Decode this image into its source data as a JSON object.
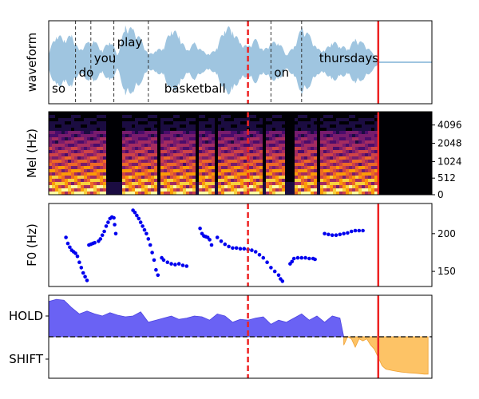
{
  "colors": {
    "waveform": "#9fc5e0",
    "word_boundary": "#333333",
    "current_marker": "#ee2222",
    "end_marker": "#ee2222",
    "f0_points": "#0000ee",
    "hold_fill": "#6a62f4",
    "shift_fill": "#fdc366"
  },
  "chart_data": [
    {
      "type": "area",
      "panel": "waveform",
      "ylabel": "waveform",
      "time_range": [
        0,
        10
      ],
      "words": [
        {
          "text": "so",
          "start": 0.0,
          "end": 0.7,
          "row": "bottom"
        },
        {
          "text": "do",
          "start": 0.7,
          "end": 1.1,
          "row": "middle"
        },
        {
          "text": "you",
          "start": 1.1,
          "end": 1.7,
          "row": "upper"
        },
        {
          "text": "play",
          "start": 1.7,
          "end": 2.6,
          "row": "top"
        },
        {
          "text": "basketball",
          "start": 2.6,
          "end": 5.8,
          "row": "bottom"
        },
        {
          "text": "on",
          "start": 5.8,
          "end": 6.6,
          "row": "middle"
        },
        {
          "text": "thursdays",
          "start": 6.6,
          "end": 8.6,
          "row": "upper"
        }
      ],
      "word_boundaries": [
        0.7,
        1.1,
        1.7,
        2.6,
        5.8,
        6.6
      ],
      "current_time": 5.2,
      "end_time": 8.6,
      "envelope": {
        "times": [
          0.0,
          0.2,
          0.4,
          0.6,
          0.8,
          1.0,
          1.2,
          1.4,
          1.6,
          1.8,
          2.0,
          2.2,
          2.4,
          2.6,
          2.8,
          3.0,
          3.2,
          3.4,
          3.6,
          3.8,
          4.0,
          4.2,
          4.4,
          4.6,
          4.8,
          5.0,
          5.2,
          5.4,
          5.6,
          5.8,
          6.0,
          6.2,
          6.4,
          6.6,
          6.8,
          7.0,
          7.2,
          7.4,
          7.6,
          7.8,
          8.0,
          8.2,
          8.4,
          8.6,
          8.8,
          9.0,
          9.5,
          10.0
        ],
        "amplitudes": [
          0.25,
          0.75,
          0.6,
          0.7,
          0.3,
          0.5,
          0.55,
          0.3,
          0.6,
          0.2,
          0.95,
          0.85,
          0.6,
          0.2,
          0.3,
          0.4,
          0.9,
          0.7,
          0.3,
          0.5,
          0.3,
          0.2,
          0.4,
          0.95,
          0.85,
          0.5,
          0.4,
          0.6,
          0.3,
          0.5,
          0.55,
          0.2,
          0.4,
          0.9,
          0.7,
          0.35,
          0.3,
          0.55,
          0.45,
          0.35,
          0.6,
          0.5,
          0.3,
          0.05,
          0.02,
          0.02,
          0.02,
          0.02
        ]
      }
    },
    {
      "type": "heatmap",
      "panel": "mel-spectrogram",
      "ylabel": "Mel (Hz)",
      "y_ticks": [
        0,
        512,
        1024,
        2048,
        4096
      ],
      "time_range": [
        0,
        10
      ],
      "voiced_segments": [
        [
          0.0,
          0.8
        ],
        [
          0.85,
          1.5
        ],
        [
          1.9,
          2.8
        ],
        [
          2.95,
          3.8
        ],
        [
          3.9,
          4.3
        ],
        [
          4.4,
          5.6
        ],
        [
          5.7,
          6.2
        ],
        [
          6.4,
          7.0
        ],
        [
          7.1,
          7.9
        ],
        [
          7.95,
          8.6
        ]
      ],
      "current_time": 5.2,
      "end_time": 8.6
    },
    {
      "type": "scatter",
      "panel": "f0",
      "ylabel": "F0 (Hz)",
      "y_ticks": [
        150,
        200
      ],
      "ylim": [
        130,
        240
      ],
      "time_range": [
        0,
        10
      ],
      "points": [
        [
          0.45,
          195
        ],
        [
          0.5,
          187
        ],
        [
          0.55,
          182
        ],
        [
          0.6,
          178
        ],
        [
          0.65,
          176
        ],
        [
          0.7,
          174
        ],
        [
          0.75,
          170
        ],
        [
          0.8,
          162
        ],
        [
          0.85,
          155
        ],
        [
          0.9,
          148
        ],
        [
          0.95,
          143
        ],
        [
          1.0,
          138
        ],
        [
          1.05,
          185
        ],
        [
          1.1,
          186
        ],
        [
          1.15,
          187
        ],
        [
          1.2,
          188
        ],
        [
          1.3,
          190
        ],
        [
          1.35,
          193
        ],
        [
          1.4,
          198
        ],
        [
          1.45,
          203
        ],
        [
          1.5,
          210
        ],
        [
          1.55,
          215
        ],
        [
          1.6,
          220
        ],
        [
          1.65,
          222
        ],
        [
          1.7,
          221
        ],
        [
          1.72,
          212
        ],
        [
          1.75,
          200
        ],
        [
          2.2,
          231
        ],
        [
          2.25,
          228
        ],
        [
          2.3,
          224
        ],
        [
          2.35,
          220
        ],
        [
          2.4,
          215
        ],
        [
          2.45,
          210
        ],
        [
          2.5,
          205
        ],
        [
          2.55,
          200
        ],
        [
          2.6,
          193
        ],
        [
          2.65,
          185
        ],
        [
          2.7,
          175
        ],
        [
          2.75,
          165
        ],
        [
          2.8,
          152
        ],
        [
          2.85,
          145
        ],
        [
          2.95,
          168
        ],
        [
          3.0,
          165
        ],
        [
          3.1,
          162
        ],
        [
          3.2,
          160
        ],
        [
          3.3,
          159
        ],
        [
          3.4,
          160
        ],
        [
          3.5,
          158
        ],
        [
          3.6,
          157
        ],
        [
          3.95,
          207
        ],
        [
          4.0,
          200
        ],
        [
          4.05,
          197
        ],
        [
          4.1,
          196
        ],
        [
          4.15,
          195
        ],
        [
          4.2,
          192
        ],
        [
          4.25,
          185
        ],
        [
          4.4,
          195
        ],
        [
          4.5,
          190
        ],
        [
          4.6,
          186
        ],
        [
          4.7,
          183
        ],
        [
          4.8,
          181
        ],
        [
          4.9,
          181
        ],
        [
          5.0,
          180
        ],
        [
          5.1,
          180
        ],
        [
          5.2,
          179
        ],
        [
          5.3,
          178
        ],
        [
          5.4,
          176
        ],
        [
          5.5,
          172
        ],
        [
          5.6,
          168
        ],
        [
          5.7,
          162
        ],
        [
          5.8,
          155
        ],
        [
          5.9,
          150
        ],
        [
          6.0,
          145
        ],
        [
          6.05,
          140
        ],
        [
          6.1,
          137
        ],
        [
          6.3,
          160
        ],
        [
          6.35,
          163
        ],
        [
          6.4,
          167
        ],
        [
          6.5,
          168
        ],
        [
          6.6,
          168
        ],
        [
          6.7,
          168
        ],
        [
          6.8,
          167
        ],
        [
          6.9,
          167
        ],
        [
          6.95,
          166
        ],
        [
          7.2,
          200
        ],
        [
          7.3,
          199
        ],
        [
          7.4,
          198
        ],
        [
          7.5,
          198
        ],
        [
          7.6,
          199
        ],
        [
          7.7,
          200
        ],
        [
          7.8,
          201
        ],
        [
          7.9,
          203
        ],
        [
          8.0,
          204
        ],
        [
          8.1,
          204
        ],
        [
          8.2,
          204
        ]
      ],
      "current_time": 5.2,
      "end_time": 8.6
    },
    {
      "type": "area",
      "panel": "turn-taking",
      "y_ticks": [
        "HOLD",
        "SHIFT"
      ],
      "ylim": [
        -1,
        1
      ],
      "time_range": [
        0,
        10
      ],
      "hold": {
        "times": [
          0.0,
          0.2,
          0.4,
          0.6,
          0.8,
          1.0,
          1.2,
          1.4,
          1.6,
          1.8,
          2.0,
          2.2,
          2.4,
          2.6,
          2.8,
          3.0,
          3.2,
          3.4,
          3.6,
          3.8,
          4.0,
          4.2,
          4.4,
          4.6,
          4.8,
          5.0,
          5.2,
          5.4,
          5.6,
          5.8,
          6.0,
          6.2,
          6.4,
          6.6,
          6.8,
          7.0,
          7.2,
          7.4,
          7.6,
          7.7
        ],
        "values": [
          0.85,
          0.9,
          0.88,
          0.7,
          0.55,
          0.62,
          0.55,
          0.5,
          0.58,
          0.52,
          0.48,
          0.5,
          0.6,
          0.35,
          0.4,
          0.45,
          0.5,
          0.42,
          0.45,
          0.5,
          0.48,
          0.4,
          0.55,
          0.5,
          0.35,
          0.42,
          0.4,
          0.45,
          0.48,
          0.3,
          0.4,
          0.35,
          0.45,
          0.55,
          0.4,
          0.5,
          0.35,
          0.5,
          0.45,
          0.0
        ]
      },
      "shift": {
        "times": [
          7.7,
          7.8,
          7.9,
          8.0,
          8.1,
          8.2,
          8.3,
          8.4,
          8.5,
          8.6,
          8.7,
          8.8,
          9.0,
          9.2,
          9.4,
          9.6,
          9.8,
          9.9
        ],
        "values": [
          -0.2,
          0.0,
          -0.05,
          -0.25,
          -0.05,
          -0.1,
          -0.05,
          -0.2,
          -0.3,
          -0.5,
          -0.7,
          -0.78,
          -0.82,
          -0.85,
          -0.87,
          -0.88,
          -0.9,
          -0.9
        ]
      },
      "current_time": 5.2,
      "end_time": 8.6
    }
  ]
}
